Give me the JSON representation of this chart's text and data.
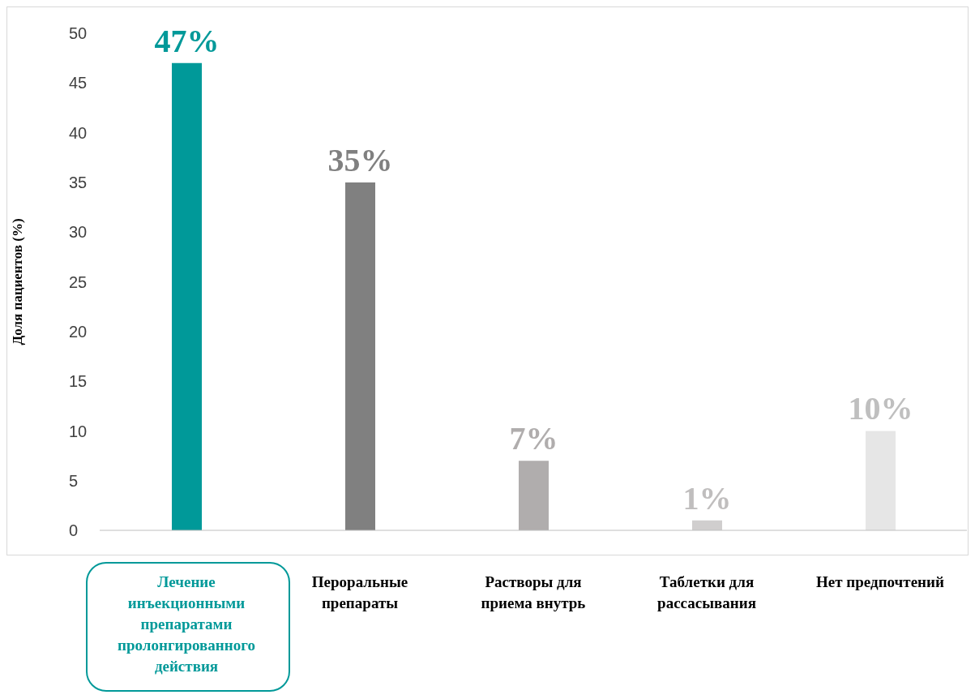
{
  "chart_data": {
    "type": "bar",
    "ylabel": "Доля пациентов (%)",
    "categories": [
      "Лечение инъекционными препаратами пролонгированного действия",
      "Пероральные препараты",
      "Растворы для приема внутрь",
      "Таблетки для рассасывания",
      "Нет предпочтений"
    ],
    "values": [
      47,
      35,
      7,
      1,
      10
    ],
    "colors": [
      "#009999",
      "#808080",
      "#b0adad",
      "#d0cece",
      "#e6e6e6"
    ],
    "value_labels": [
      "47%",
      "35%",
      "7%",
      "1%",
      "10%"
    ],
    "ylim": [
      0,
      50
    ],
    "yticks": [
      0,
      5,
      10,
      15,
      20,
      25,
      30,
      35,
      40,
      45,
      50
    ],
    "grid": false
  }
}
